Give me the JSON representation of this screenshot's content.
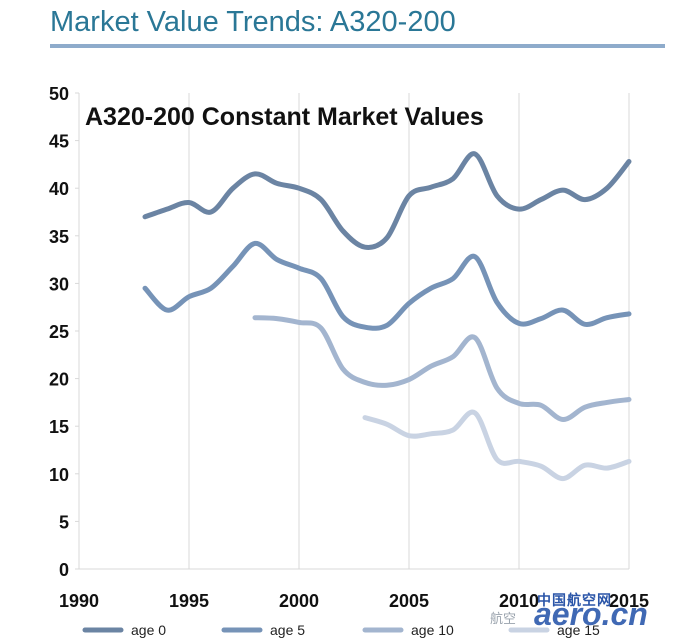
{
  "slide": {
    "title": "Market Value Trends: A320-200"
  },
  "colors": {
    "title": "#2a7796",
    "rule": "#8eabcb",
    "axis": "#d9d9d9",
    "age0": "#6b84a3",
    "age5": "#7693b7",
    "age10": "#a3b5cf",
    "age15": "#c9d3e3"
  },
  "chart_data": {
    "type": "line",
    "title": "A320-200 Constant Market Values",
    "xlabel": "",
    "ylabel": "",
    "xlim": [
      1990,
      2015
    ],
    "ylim": [
      0,
      50
    ],
    "x_ticks": [
      "1990",
      "1995",
      "2000",
      "2005",
      "2010",
      "2015"
    ],
    "y_ticks": [
      "0",
      "5",
      "10",
      "15",
      "20",
      "25",
      "30",
      "35",
      "40",
      "45",
      "50"
    ],
    "grid": "vertical",
    "legend_position": "bottom",
    "series": [
      {
        "name": "age 0",
        "x": [
          1993,
          1994,
          1995,
          1996,
          1997,
          1998,
          1999,
          2000,
          2001,
          2002,
          2003,
          2004,
          2005,
          2006,
          2007,
          2008,
          2009,
          2010,
          2011,
          2012,
          2013,
          2014,
          2015
        ],
        "y": [
          37,
          37.8,
          38.5,
          37.5,
          40,
          41.5,
          40.5,
          40,
          38.8,
          35.5,
          33.8,
          34.8,
          39.2,
          40.1,
          41,
          43.6,
          39.2,
          37.8,
          38.8,
          39.8,
          38.8,
          40,
          42.8
        ]
      },
      {
        "name": "age 5",
        "x": [
          1993,
          1994,
          1995,
          1996,
          1997,
          1998,
          1999,
          2000,
          2001,
          2002,
          2003,
          2004,
          2005,
          2006,
          2007,
          2008,
          2009,
          2010,
          2011,
          2012,
          2013,
          2014,
          2015
        ],
        "y": [
          29.5,
          27.2,
          28.6,
          29.5,
          31.8,
          34.2,
          32.5,
          31.6,
          30.5,
          26.5,
          25.4,
          25.6,
          27.9,
          29.5,
          30.5,
          32.8,
          28,
          25.8,
          26.3,
          27.2,
          25.7,
          26.4,
          26.8
        ]
      },
      {
        "name": "age 10",
        "x": [
          1998,
          1999,
          2000,
          2001,
          2002,
          2003,
          2004,
          2005,
          2006,
          2007,
          2008,
          2009,
          2010,
          2011,
          2012,
          2013,
          2014,
          2015
        ],
        "y": [
          26.4,
          26.3,
          25.9,
          25.3,
          21,
          19.6,
          19.3,
          19.9,
          21.3,
          22.3,
          24.3,
          19,
          17.4,
          17.2,
          15.7,
          17,
          17.5,
          17.8
        ]
      },
      {
        "name": "age 15",
        "x": [
          2003,
          2004,
          2005,
          2006,
          2007,
          2008,
          2009,
          2010,
          2011,
          2012,
          2013,
          2014,
          2015
        ],
        "y": [
          15.9,
          15.2,
          14,
          14.2,
          14.6,
          16.4,
          11.5,
          11.3,
          10.8,
          9.5,
          10.9,
          10.6,
          11.3
        ]
      }
    ]
  },
  "watermark": {
    "cn_text": "中国航空网",
    "logo_text": "aero.cn",
    "wechat_text": "航空"
  }
}
